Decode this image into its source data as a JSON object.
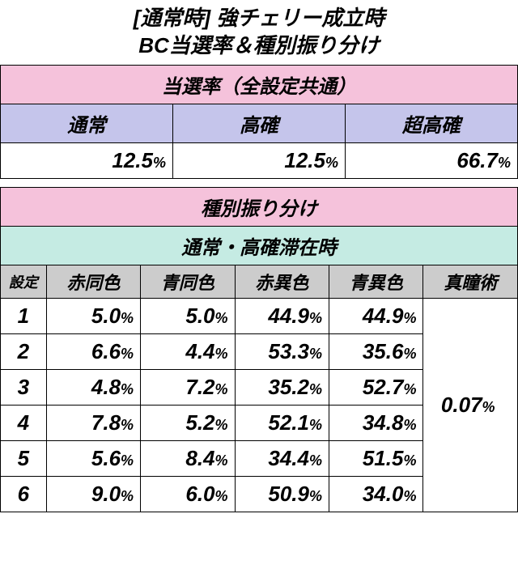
{
  "title": {
    "line1": "[通常時] 強チェリー成立時",
    "line2": "BC当選率＆種別振り分け"
  },
  "table1": {
    "header_main": "当選率（全設定共通）",
    "columns": [
      "通常",
      "高確",
      "超高確"
    ],
    "values": [
      "12.5",
      "12.5",
      "66.7"
    ],
    "pct_label": "%",
    "colors": {
      "header_main_bg": "#f5c2db",
      "header_sub_bg": "#c5c5eb",
      "data_bg": "#ffffff",
      "border": "#000000",
      "text": "#000000"
    }
  },
  "table2": {
    "header_main": "種別振り分け",
    "header_sub": "通常・高確滞在時",
    "setting_label": "設定",
    "columns": [
      "赤同色",
      "青同色",
      "赤異色",
      "青異色",
      "真瞳術"
    ],
    "settings": [
      "1",
      "2",
      "3",
      "4",
      "5",
      "6"
    ],
    "rows": [
      [
        "5.0",
        "5.0",
        "44.9",
        "44.9"
      ],
      [
        "6.6",
        "4.4",
        "53.3",
        "35.6"
      ],
      [
        "4.8",
        "7.2",
        "35.2",
        "52.7"
      ],
      [
        "7.8",
        "5.2",
        "52.1",
        "34.8"
      ],
      [
        "5.6",
        "8.4",
        "34.4",
        "51.5"
      ],
      [
        "9.0",
        "6.0",
        "50.9",
        "34.0"
      ]
    ],
    "last_col_value": "0.07",
    "pct_label": "%",
    "colors": {
      "header_main_bg": "#f5c2db",
      "header_sub_bg": "#c5ebe3",
      "setting_bg": "#cccccc",
      "col_header_bg": "#cccccc",
      "data_bg": "#ffffff",
      "border": "#000000",
      "text": "#000000"
    }
  }
}
